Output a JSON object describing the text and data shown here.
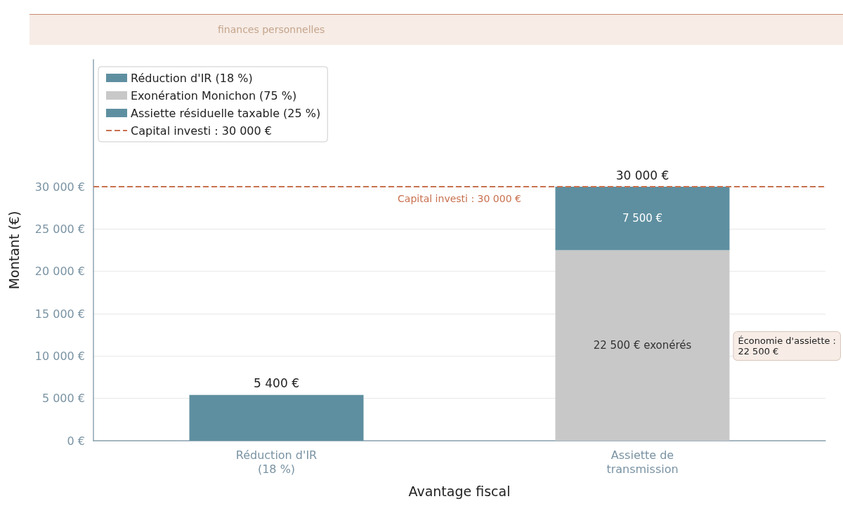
{
  "chart_data": {
    "type": "bar",
    "subtitle": "finances personnelles",
    "xlabel": "Avantage fiscal",
    "ylabel": "Montant (€)",
    "categories": [
      "Réduction d'IR\n(18 %)",
      "Assiette de\ntransmission"
    ],
    "stacked": true,
    "series": [
      {
        "name": "Réduction d'IR (18 %)",
        "color": "#5e8fa0",
        "values": [
          5400,
          null
        ]
      },
      {
        "name": "Exonération Monichon (75 %)",
        "color": "#c8c8c8",
        "values": [
          null,
          22500
        ],
        "value_labels": [
          null,
          "22 500 € exonérés"
        ]
      },
      {
        "name": "Assiette résiduelle taxable (25 %)",
        "color": "#5e8fa0",
        "values": [
          null,
          7500
        ],
        "value_labels": [
          null,
          "7 500 €"
        ]
      }
    ],
    "totals": [
      "5 400 €",
      "30 000 €"
    ],
    "ylim": [
      0,
      45000
    ],
    "yticks": [
      {
        "value": 0,
        "label": "0 €"
      },
      {
        "value": 5000,
        "label": "5 000 €"
      },
      {
        "value": 10000,
        "label": "10 000 €"
      },
      {
        "value": 15000,
        "label": "15 000 €"
      },
      {
        "value": 20000,
        "label": "20 000 €"
      },
      {
        "value": 25000,
        "label": "25 000 €"
      },
      {
        "value": 30000,
        "label": "30 000 €"
      }
    ],
    "ref_lines": [
      {
        "axis": "y",
        "value": 30000,
        "label": "Capital investi : 30 000 €",
        "color": "#c8714f",
        "line_style": "dashed"
      }
    ],
    "annotations": [
      "Économie d'assiette :\n22 500 €"
    ],
    "grid": "y",
    "legend": "top left"
  }
}
